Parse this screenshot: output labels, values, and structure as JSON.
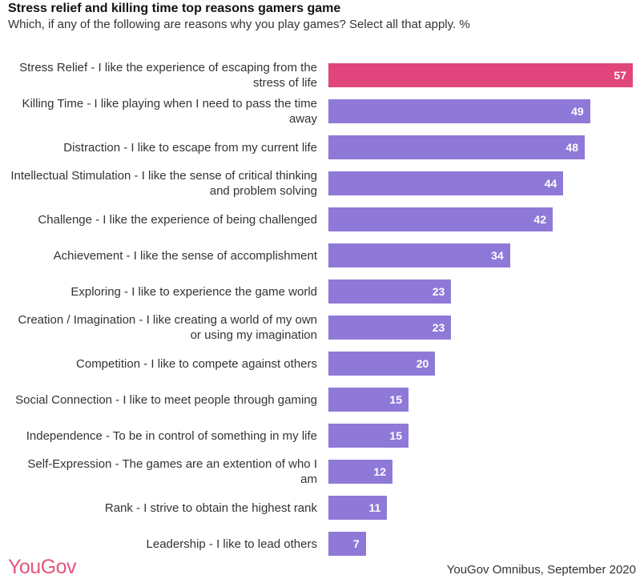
{
  "chart_data": {
    "type": "bar",
    "orientation": "horizontal",
    "title": "Stress relief and killing time top reasons gamers game",
    "subtitle": "Which, if any of the following are reasons why you play games? Select all that apply. %",
    "categories": [
      "Stress Relief - I like the experience of escaping from the stress of life",
      "Killing Time - I like playing when I need to pass the time away",
      "Distraction - I like to escape from my current life",
      "Intellectual Stimulation - I like the sense of critical thinking and problem solving",
      "Challenge - I like the experience of being challenged",
      "Achievement - I like the sense of accomplishment",
      "Exploring - I like to experience the game world",
      "Creation / Imagination - I like creating a world of my own or using my imagination",
      "Competition - I like to compete against others",
      "Social Connection - I like to meet people through gaming",
      "Independence - To be in control of something in my life",
      "Self-Expression - The  games are an extention of who I am",
      "Rank - I strive to obtain the highest rank",
      "Leadership - I like to lead others"
    ],
    "values": [
      57,
      49,
      48,
      44,
      42,
      34,
      23,
      23,
      20,
      15,
      15,
      12,
      11,
      7
    ],
    "xlim": [
      0,
      57
    ],
    "grid": false,
    "colors": {
      "highlight": "#e0457b",
      "default": "#8f79d8"
    },
    "highlight_index": 0
  },
  "footer": {
    "logo": "YouGov",
    "source": "YouGov Omnibus, September 2020"
  }
}
